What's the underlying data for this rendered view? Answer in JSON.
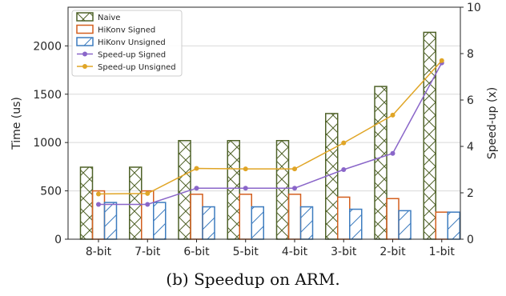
{
  "chart_data": {
    "type": "bar",
    "categories": [
      "8-bit",
      "7-bit",
      "6-bit",
      "5-bit",
      "4-bit",
      "3-bit",
      "2-bit",
      "1-bit"
    ],
    "ylabel": "Time (us)",
    "y2label": "Speed-up (x)",
    "ylim": [
      0,
      2400
    ],
    "y2lim": [
      0,
      10
    ],
    "yticks": [
      0,
      500,
      1000,
      1500,
      2000
    ],
    "y2ticks": [
      0,
      2,
      4,
      6,
      8,
      10
    ],
    "grid": "horizontal",
    "legend_position": "top-left",
    "bar_series": [
      {
        "name": "Naive",
        "values": [
          745,
          745,
          1020,
          1020,
          1020,
          1300,
          1580,
          2140
        ],
        "color": "#4f6228",
        "hatch": "cross"
      },
      {
        "name": "HiKonv Signed",
        "values": [
          500,
          500,
          465,
          465,
          465,
          435,
          420,
          280
        ],
        "color": "#d35f1e",
        "hatch": "none"
      },
      {
        "name": "HiKonv Unsigned",
        "values": [
          380,
          380,
          335,
          335,
          335,
          310,
          295,
          280
        ],
        "color": "#3d7cbf",
        "hatch": "diag"
      }
    ],
    "line_series": [
      {
        "name": "Speed-up Signed",
        "values": [
          1.5,
          1.5,
          2.2,
          2.2,
          2.2,
          3.0,
          3.7,
          7.6
        ],
        "color": "#8a66c9",
        "axis": "right"
      },
      {
        "name": "Speed-up Unsigned",
        "values": [
          1.95,
          1.97,
          3.05,
          3.03,
          3.03,
          4.15,
          5.35,
          7.7
        ],
        "color": "#e0a526",
        "axis": "right"
      }
    ]
  },
  "caption": "(b) Speedup on ARM."
}
